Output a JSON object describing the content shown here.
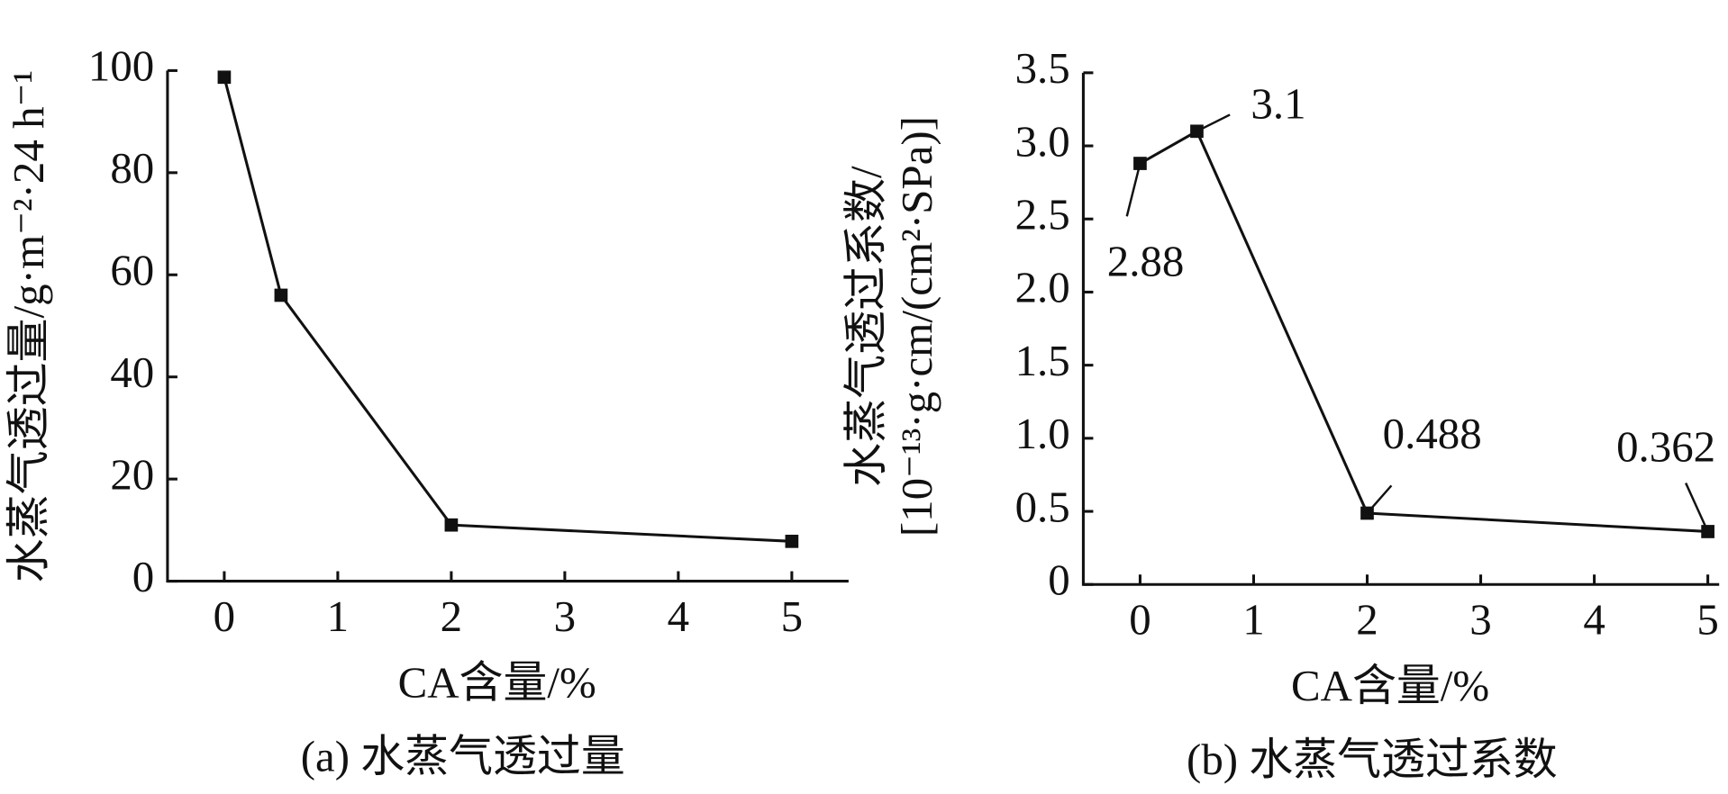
{
  "chart_data": [
    {
      "type": "line",
      "title": "(a) 水蒸气透过量",
      "x_label": "CA含量/%",
      "y_label": [
        "水蒸气透过量/g·m⁻²·24 h⁻¹"
      ],
      "x": [
        0,
        0.5,
        2,
        5
      ],
      "values": [
        98.7,
        56,
        11,
        7.8
      ],
      "color": "#111111",
      "marker": "square",
      "xlim": [
        -0.5,
        5.5
      ],
      "xticks": [
        0,
        1,
        2,
        3,
        4,
        5
      ],
      "ylim": [
        0,
        100
      ],
      "yticks": [
        0,
        20,
        40,
        60,
        80,
        100
      ]
    },
    {
      "type": "line",
      "title": "(b) 水蒸气透过系数",
      "x_label": "CA含量/%",
      "y_label": [
        "水蒸气透过系数/",
        "[10⁻¹³·g·cm/(cm²·SPa)]"
      ],
      "x": [
        0,
        0.5,
        2,
        5
      ],
      "values": [
        2.88,
        3.1,
        0.488,
        0.362
      ],
      "color": "#111111",
      "marker": "square",
      "data_labels": true,
      "xlim": [
        -0.5,
        5.1
      ],
      "xticks": [
        0,
        1,
        2,
        3,
        4,
        5
      ],
      "ylim": [
        0,
        3.5
      ],
      "yticks": [
        0,
        0.5,
        {
          "value": 1,
          "label": "1.0"
        },
        1.5,
        {
          "value": 2,
          "label": "2.0"
        },
        2.5,
        {
          "value": 3,
          "label": "3.0"
        },
        3.5
      ]
    }
  ]
}
